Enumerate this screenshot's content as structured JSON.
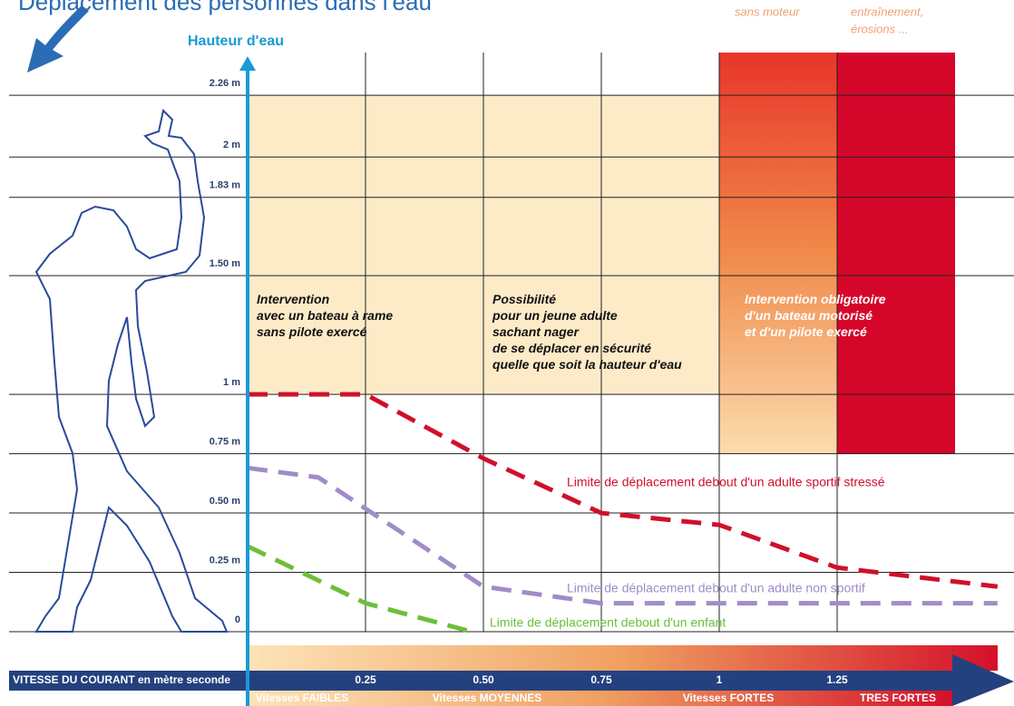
{
  "chart_data": {
    "type": "line",
    "title": "Déplacement des personnes dans l'eau",
    "top_notes": [
      "sans moteur",
      "entraînement,",
      "érosions ..."
    ],
    "y_label": "Hauteur d'eau",
    "x_label": "VITESSE DU COURANT en mètre seconde",
    "xlim": [
      0,
      1.625
    ],
    "ylim": [
      0,
      2.44
    ],
    "xticks": [
      0.25,
      {
        "value": 0.5,
        "label": "0.50"
      },
      0.75,
      1,
      1.25
    ],
    "yticks": [
      {
        "value": 0,
        "label": "0"
      },
      {
        "value": 0.25,
        "label": "0.25 m"
      },
      {
        "value": 0.5,
        "label": "0.50 m"
      },
      {
        "value": 0.75,
        "label": "0.75 m"
      },
      {
        "value": 1,
        "label": "1 m"
      },
      {
        "value": 1.5,
        "label": "1.50 m"
      },
      {
        "value": 1.83,
        "label": "1.83 m"
      },
      {
        "value": 2,
        "label": "2 m"
      },
      {
        "value": 2.26,
        "label": "2.26 m"
      }
    ],
    "speed_classes": [
      "Vitesses FAIBLES",
      "Vitesses MOYENNES",
      "Vitesses FORTES",
      "TRES FORTES"
    ],
    "zones": [
      {
        "text": [
          "Intervention",
          "avec un bateau à rame",
          "sans pilote exercé"
        ],
        "x": [
          0,
          0.5
        ],
        "y": [
          1,
          2.26
        ],
        "color": "#fdebc8"
      },
      {
        "text": [
          "Possibilité",
          "pour un jeune adulte",
          "sachant nager",
          "de se déplacer en sécurité",
          "quelle que soit la hauteur d'eau"
        ],
        "x": [
          0.5,
          1
        ],
        "y": [
          1,
          2.26
        ],
        "color": "#fdebc8"
      },
      {
        "text": [
          "Intervention obligatoire",
          "d'un bateau motorisé",
          "et d'un pilote exercé"
        ],
        "x": [
          1,
          1.25
        ],
        "y": [
          0.75,
          2.44
        ],
        "color": "#ec5a2e"
      },
      {
        "x": [
          1.25,
          1.5
        ],
        "y": [
          0.75,
          2.44
        ],
        "color": "#d4072a"
      }
    ],
    "series": [
      {
        "name": "Limite de déplacement debout d'un adulte sportif stressé",
        "color": "#d0102a",
        "x": [
          0,
          0.25,
          0.5,
          0.75,
          1,
          1.25,
          1.59
        ],
        "values": [
          1,
          1,
          0.73,
          0.5,
          0.45,
          0.27,
          0.19
        ]
      },
      {
        "name": "Limite de déplacement debout d'un adulte non sportif",
        "color": "#a08cc8",
        "x": [
          0,
          0.15,
          0.5,
          0.75,
          1.59
        ],
        "values": [
          0.69,
          0.65,
          0.19,
          0.12,
          0.12
        ]
      },
      {
        "name": "Limite de déplacement debout d'un enfant",
        "color": "#6cbf3a",
        "x": [
          0,
          0.25,
          0.475
        ],
        "values": [
          0.36,
          0.12,
          0
        ]
      }
    ]
  }
}
